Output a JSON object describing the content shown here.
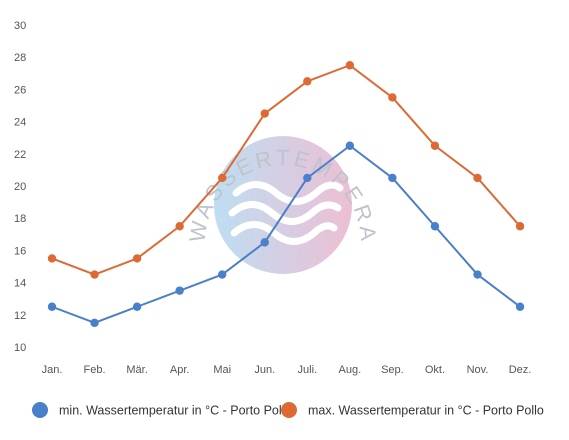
{
  "chart_data": {
    "type": "line",
    "categories": [
      "Jan.",
      "Feb.",
      "Mär.",
      "Apr.",
      "Mai",
      "Jun.",
      "Juli.",
      "Aug.",
      "Sep.",
      "Okt.",
      "Nov.",
      "Dez."
    ],
    "series": [
      {
        "name": "min. Wassertemperatur in °C - Porto Pollo",
        "color": "#4a7fc9",
        "values": [
          12.5,
          11.5,
          12.5,
          13.5,
          14.5,
          16.5,
          20.5,
          22.5,
          20.5,
          17.5,
          14.5,
          12.5
        ]
      },
      {
        "name": "max. Wassertemperatur in °C - Porto Pollo",
        "color": "#dd6a35",
        "values": [
          15.5,
          14.5,
          15.5,
          17.5,
          20.5,
          24.5,
          26.5,
          27.5,
          25.5,
          22.5,
          20.5,
          17.5
        ]
      }
    ],
    "y_ticks": [
      "10",
      "12",
      "14",
      "16",
      "18",
      "20",
      "22",
      "24",
      "26",
      "28",
      "30"
    ],
    "ylim": [
      10,
      30
    ],
    "grid": false,
    "legend_position": "bottom",
    "title": "",
    "xlabel": "",
    "ylabel": ""
  },
  "watermark": {
    "text": "WASSERTEMPERATUR.ORG",
    "icon": "waves-logo-icon"
  }
}
